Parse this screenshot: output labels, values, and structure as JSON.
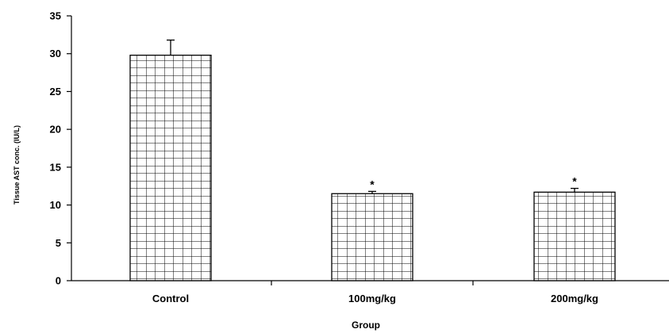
{
  "chart_data": {
    "type": "bar",
    "categories": [
      "Control",
      "100mg/kg",
      "200mg/kg"
    ],
    "values": [
      29.8,
      11.5,
      11.7
    ],
    "errors": [
      2.0,
      0.3,
      0.5
    ],
    "annotations": [
      "",
      "*",
      "*"
    ],
    "title": "",
    "xlabel": "Group",
    "ylabel": "Tissue AST conc. (IU/L)",
    "ylim": [
      0,
      35
    ],
    "yticks": [
      0,
      5,
      10,
      15,
      20,
      25,
      30,
      35
    ],
    "grid": false,
    "legend": "none",
    "bar_fill": "grid-hatch",
    "colors": {
      "bar_fill": "#ffffff",
      "bar_stroke": "#000000",
      "axis": "#000000"
    }
  }
}
